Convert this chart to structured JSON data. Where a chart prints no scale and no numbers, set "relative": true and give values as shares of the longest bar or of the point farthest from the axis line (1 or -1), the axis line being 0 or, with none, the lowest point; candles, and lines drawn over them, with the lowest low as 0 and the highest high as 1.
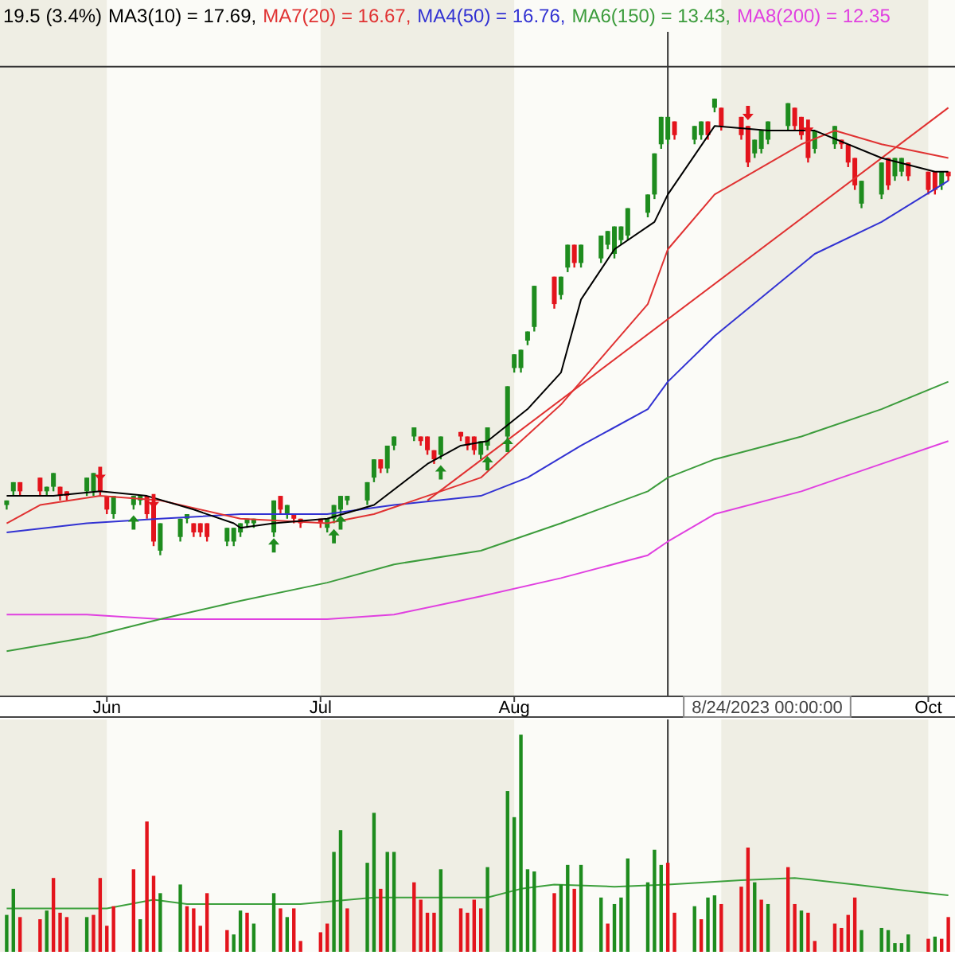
{
  "chart_data": [
    {
      "type": "candlestick",
      "relative": true,
      "title": "19.5 (3.4%)",
      "legend": "top left",
      "xlim": [
        "2023-05-16",
        "2023-10-06"
      ],
      "xticks": [
        {
          "value": "2023-06-01",
          "label": "Jun"
        },
        {
          "value": "2023-07-03",
          "label": "Jul"
        },
        {
          "value": "2023-08-01",
          "label": "Aug"
        },
        {
          "value": "2023-09-01",
          "label": null
        },
        {
          "value": "2023-10-02",
          "label": "Oct"
        }
      ],
      "x": [
        "2023-05-17",
        "2023-05-18",
        "2023-05-19",
        "2023-05-22",
        "2023-05-23",
        "2023-05-24",
        "2023-05-25",
        "2023-05-26",
        "2023-05-29",
        "2023-05-30",
        "2023-05-31",
        "2023-06-01",
        "2023-06-02",
        "2023-06-05",
        "2023-06-06",
        "2023-06-07",
        "2023-06-08",
        "2023-06-09",
        "2023-06-12",
        "2023-06-13",
        "2023-06-14",
        "2023-06-15",
        "2023-06-16",
        "2023-06-19",
        "2023-06-20",
        "2023-06-21",
        "2023-06-22",
        "2023-06-23",
        "2023-06-26",
        "2023-06-27",
        "2023-06-28",
        "2023-06-29",
        "2023-06-30",
        "2023-07-03",
        "2023-07-04",
        "2023-07-05",
        "2023-07-06",
        "2023-07-07",
        "2023-07-10",
        "2023-07-11",
        "2023-07-12",
        "2023-07-13",
        "2023-07-14",
        "2023-07-17",
        "2023-07-18",
        "2023-07-19",
        "2023-07-20",
        "2023-07-21",
        "2023-07-24",
        "2023-07-25",
        "2023-07-26",
        "2023-07-27",
        "2023-07-28",
        "2023-07-31",
        "2023-08-01",
        "2023-08-02",
        "2023-08-03",
        "2023-08-04",
        "2023-08-07",
        "2023-08-08",
        "2023-08-09",
        "2023-08-10",
        "2023-08-11",
        "2023-08-14",
        "2023-08-15",
        "2023-08-16",
        "2023-08-17",
        "2023-08-18",
        "2023-08-21",
        "2023-08-22",
        "2023-08-23",
        "2023-08-24",
        "2023-08-25",
        "2023-08-28",
        "2023-08-29",
        "2023-08-30",
        "2023-08-31",
        "2023-09-01",
        "2023-09-04",
        "2023-09-05",
        "2023-09-06",
        "2023-09-07",
        "2023-09-08",
        "2023-09-11",
        "2023-09-12",
        "2023-09-13",
        "2023-09-14",
        "2023-09-15",
        "2023-09-18",
        "2023-09-19",
        "2023-09-20",
        "2023-09-21",
        "2023-09-22",
        "2023-09-25",
        "2023-09-26",
        "2023-09-27",
        "2023-09-28",
        "2023-09-29",
        "2023-10-02",
        "2023-10-03",
        "2023-10-04",
        "2023-10-05"
      ],
      "ohlc": [
        [
          0.11,
          0.12,
          0.1,
          0.12
        ],
        [
          0.14,
          0.16,
          0.13,
          0.16
        ],
        [
          0.16,
          0.16,
          0.13,
          0.14
        ],
        [
          0.17,
          0.17,
          0.13,
          0.14
        ],
        [
          0.14,
          0.15,
          0.13,
          0.15
        ],
        [
          0.15,
          0.18,
          0.14,
          0.18
        ],
        [
          0.15,
          0.15,
          0.12,
          0.13
        ],
        [
          0.14,
          0.14,
          0.12,
          0.13
        ],
        [
          0.14,
          0.17,
          0.13,
          0.17
        ],
        [
          0.14,
          0.18,
          0.13,
          0.18
        ],
        [
          0.17,
          0.17,
          0.13,
          0.14
        ],
        [
          0.13,
          0.13,
          0.09,
          0.1
        ],
        [
          0.09,
          0.13,
          0.08,
          0.13
        ],
        [
          0.11,
          0.13,
          0.1,
          0.13
        ],
        [
          0.12,
          0.13,
          0.11,
          0.13
        ],
        [
          0.13,
          0.13,
          0.08,
          0.09
        ],
        [
          0.11,
          0.11,
          0.02,
          0.03
        ],
        [
          0.01,
          0.07,
          0,
          0.07
        ],
        [
          0.04,
          0.08,
          0.03,
          0.08
        ],
        [
          0.08,
          0.09,
          0.07,
          0.09
        ],
        [
          0.07,
          0.07,
          0.04,
          0.05
        ],
        [
          0.07,
          0.07,
          0.04,
          0.05
        ],
        [
          0.07,
          0.07,
          0.03,
          0.04
        ],
        [
          0.03,
          0.06,
          0.02,
          0.06
        ],
        [
          0.03,
          0.06,
          0.02,
          0.06
        ],
        [
          0.05,
          0.07,
          0.04,
          0.07
        ],
        [
          0.07,
          0.08,
          0.06,
          0.08
        ],
        [
          0.07,
          0.08,
          0.06,
          0.08
        ],
        [
          0.05,
          0.12,
          0.04,
          0.12
        ],
        [
          0.13,
          0.13,
          0.09,
          0.1
        ],
        [
          0.09,
          0.11,
          0.08,
          0.11
        ],
        [
          0.09,
          0.09,
          0.07,
          0.08
        ],
        [
          0.08,
          0.08,
          0.06,
          0.07
        ],
        [
          0.08,
          0.08,
          0.06,
          0.07
        ],
        [
          0.06,
          0.08,
          0.05,
          0.08
        ],
        [
          0.08,
          0.11,
          0.07,
          0.11
        ],
        [
          0.1,
          0.13,
          0.09,
          0.13
        ],
        [
          0.12,
          0.13,
          0.11,
          0.13
        ],
        [
          0.12,
          0.16,
          0.11,
          0.16
        ],
        [
          0.17,
          0.21,
          0.16,
          0.21
        ],
        [
          0.21,
          0.21,
          0.18,
          0.19
        ],
        [
          0.19,
          0.24,
          0.18,
          0.24
        ],
        [
          0.24,
          0.26,
          0.23,
          0.26
        ],
        [
          0.26,
          0.28,
          0.25,
          0.28
        ],
        [
          0.26,
          0.26,
          0.24,
          0.25
        ],
        [
          0.26,
          0.26,
          0.22,
          0.23
        ],
        [
          0.23,
          0.23,
          0.2,
          0.21
        ],
        [
          0.22,
          0.26,
          0.21,
          0.26
        ],
        [
          0.27,
          0.27,
          0.25,
          0.26
        ],
        [
          0.26,
          0.26,
          0.23,
          0.24
        ],
        [
          0.26,
          0.26,
          0.22,
          0.23
        ],
        [
          0.22,
          0.25,
          0.21,
          0.25
        ],
        [
          0.24,
          0.28,
          0.23,
          0.28
        ],
        [
          0.26,
          0.37,
          0.25,
          0.37
        ],
        [
          0.41,
          0.44,
          0.4,
          0.44
        ],
        [
          0.41,
          0.45,
          0.4,
          0.45
        ],
        [
          0.47,
          0.49,
          0.46,
          0.49
        ],
        [
          0.5,
          0.59,
          0.49,
          0.59
        ],
        [
          0.61,
          0.61,
          0.54,
          0.55
        ],
        [
          0.57,
          0.61,
          0.56,
          0.61
        ],
        [
          0.63,
          0.68,
          0.62,
          0.68
        ],
        [
          0.68,
          0.68,
          0.63,
          0.64
        ],
        [
          0.64,
          0.68,
          0.63,
          0.68
        ],
        [
          0.65,
          0.7,
          0.64,
          0.7
        ],
        [
          0.68,
          0.71,
          0.67,
          0.71
        ],
        [
          0.66,
          0.72,
          0.65,
          0.72
        ],
        [
          0.69,
          0.72,
          0.68,
          0.72
        ],
        [
          0.7,
          0.76,
          0.69,
          0.76
        ],
        [
          0.75,
          0.79,
          0.74,
          0.79
        ],
        [
          0.79,
          0.88,
          0.78,
          0.88
        ],
        [
          0.9,
          0.96,
          0.89,
          0.96
        ],
        [
          0.91,
          0.96,
          0.9,
          0.96
        ],
        [
          0.95,
          0.95,
          0.91,
          0.92
        ],
        [
          0.91,
          0.94,
          0.9,
          0.94
        ],
        [
          0.92,
          0.95,
          0.91,
          0.95
        ],
        [
          0.95,
          0.95,
          0.91,
          0.92
        ],
        [
          0.98,
          1,
          0.97,
          1
        ],
        [
          0.98,
          0.98,
          0.93,
          0.94
        ],
        [
          0.96,
          0.96,
          0.91,
          0.92
        ],
        [
          0.94,
          0.94,
          0.85,
          0.86
        ],
        [
          0.88,
          0.91,
          0.87,
          0.91
        ],
        [
          0.89,
          0.93,
          0.88,
          0.93
        ],
        [
          0.91,
          0.95,
          0.9,
          0.95
        ],
        [
          0.94,
          0.99,
          0.93,
          0.99
        ],
        [
          0.98,
          0.98,
          0.93,
          0.94
        ],
        [
          0.96,
          0.96,
          0.91,
          0.92
        ],
        [
          0.93,
          0.93,
          0.86,
          0.87
        ],
        [
          0.89,
          0.93,
          0.88,
          0.93
        ],
        [
          0.9,
          0.94,
          0.89,
          0.94
        ],
        [
          0.91,
          0.91,
          0.89,
          0.9
        ],
        [
          0.9,
          0.9,
          0.85,
          0.86
        ],
        [
          0.87,
          0.87,
          0.8,
          0.81
        ],
        [
          0.77,
          0.82,
          0.76,
          0.82
        ],
        [
          0.79,
          0.86,
          0.78,
          0.86
        ],
        [
          0.87,
          0.87,
          0.8,
          0.81
        ],
        [
          0.83,
          0.87,
          0.82,
          0.87
        ],
        [
          0.84,
          0.87,
          0.83,
          0.87
        ],
        [
          0.86,
          0.86,
          0.82,
          0.83
        ],
        [
          0.84,
          0.84,
          0.79,
          0.8
        ],
        [
          0.84,
          0.84,
          0.79,
          0.8
        ],
        [
          0.81,
          0.84,
          0.8,
          0.84
        ],
        [
          0.84,
          0.84,
          0.82,
          0.83
        ]
      ],
      "colors": [
        "#1e8c1e",
        "#1e8c1e",
        "#e3141c",
        "#e3141c",
        "#1e8c1e",
        "#1e8c1e",
        "#e3141c",
        "#e3141c",
        "#1e8c1e",
        "#1e8c1e",
        "#e3141c",
        "#e3141c",
        "#1e8c1e",
        "#1e8c1e",
        "#1e8c1e",
        "#e3141c",
        "#e3141c",
        "#1e8c1e",
        "#1e8c1e",
        "#1e8c1e",
        "#e3141c",
        "#e3141c",
        "#e3141c",
        "#1e8c1e",
        "#1e8c1e",
        "#1e8c1e",
        "#1e8c1e",
        "#1e8c1e",
        "#1e8c1e",
        "#e3141c",
        "#1e8c1e",
        "#e3141c",
        "#e3141c",
        "#e3141c",
        "#1e8c1e",
        "#1e8c1e",
        "#1e8c1e",
        "#1e8c1e",
        "#1e8c1e",
        "#1e8c1e",
        "#e3141c",
        "#1e8c1e",
        "#1e8c1e",
        "#1e8c1e",
        "#e3141c",
        "#e3141c",
        "#e3141c",
        "#1e8c1e",
        "#e3141c",
        "#e3141c",
        "#e3141c",
        "#1e8c1e",
        "#1e8c1e",
        "#1e8c1e",
        "#1e8c1e",
        "#1e8c1e",
        "#1e8c1e",
        "#1e8c1e",
        "#e3141c",
        "#1e8c1e",
        "#1e8c1e",
        "#e3141c",
        "#1e8c1e",
        "#1e8c1e",
        "#1e8c1e",
        "#1e8c1e",
        "#1e8c1e",
        "#1e8c1e",
        "#1e8c1e",
        "#1e8c1e",
        "#1e8c1e",
        "#1e8c1e",
        "#e3141c",
        "#1e8c1e",
        "#1e8c1e",
        "#e3141c",
        "#1e8c1e",
        "#e3141c",
        "#e3141c",
        "#e3141c",
        "#1e8c1e",
        "#1e8c1e",
        "#1e8c1e",
        "#1e8c1e",
        "#e3141c",
        "#e3141c",
        "#e3141c",
        "#1e8c1e",
        "#1e8c1e",
        "#e3141c",
        "#e3141c",
        "#e3141c",
        "#1e8c1e",
        "#1e8c1e",
        "#e3141c",
        "#1e8c1e",
        "#1e8c1e",
        "#e3141c",
        "#e3141c",
        "#e3141c",
        "#1e8c1e",
        "#e3141c"
      ],
      "series": [
        {
          "type": "line",
          "name": "MA3(10) = 17.69,",
          "color": "#000000",
          "x": [
            "2023-05-17",
            "2023-05-24",
            "2023-05-31",
            "2023-06-07",
            "2023-06-14",
            "2023-06-20",
            "2023-06-21",
            "2023-06-26",
            "2023-07-04",
            "2023-07-11",
            "2023-07-19",
            "2023-07-24",
            "2023-07-28",
            "2023-08-03",
            "2023-08-08",
            "2023-08-11",
            "2023-08-16",
            "2023-08-22",
            "2023-08-24",
            "2023-08-31",
            "2023-09-08",
            "2023-09-15",
            "2023-09-25",
            "2023-10-03",
            "2023-10-05"
          ],
          "values": [
            0.13,
            0.13,
            0.14,
            0.13,
            0.1,
            0.07,
            0.06,
            0.07,
            0.08,
            0.11,
            0.2,
            0.24,
            0.25,
            0.32,
            0.4,
            0.56,
            0.67,
            0.73,
            0.79,
            0.94,
            0.93,
            0.93,
            0.87,
            0.84,
            0.84
          ]
        },
        {
          "type": "line",
          "name": "MA7(20) = 16.67,",
          "color": "#e03232",
          "x": [
            "2023-05-17",
            "2023-05-22",
            "2023-05-31",
            "2023-06-09",
            "2023-06-21",
            "2023-07-04",
            "2023-07-11",
            "2023-07-19",
            "2023-07-27",
            "2023-08-08",
            "2023-08-21",
            "2023-08-24",
            "2023-08-31",
            "2023-09-13",
            "2023-09-18",
            "2023-09-25",
            "2023-10-05"
          ],
          "values": [
            0.07,
            0.11,
            0.13,
            0.12,
            0.08,
            0.07,
            0.09,
            0.13,
            0.17,
            0.33,
            0.55,
            0.67,
            0.79,
            0.9,
            0.93,
            0.9,
            0.87
          ]
        },
        {
          "type": "line",
          "name": "MA4(50) = 16.76,",
          "color": "#3232d2",
          "x": [
            "2023-05-17",
            "2023-05-29",
            "2023-06-09",
            "2023-06-21",
            "2023-07-04",
            "2023-07-14",
            "2023-07-27",
            "2023-08-03",
            "2023-08-11",
            "2023-08-21",
            "2023-08-24",
            "2023-08-31",
            "2023-09-15",
            "2023-09-25",
            "2023-10-05"
          ],
          "values": [
            0.05,
            0.07,
            0.08,
            0.09,
            0.09,
            0.11,
            0.13,
            0.17,
            0.24,
            0.32,
            0.38,
            0.48,
            0.66,
            0.73,
            0.82
          ]
        },
        {
          "type": "line",
          "name": "MA6(150) = 13.43,",
          "color": "#3c9c3c",
          "x": [
            "2023-05-17",
            "2023-05-29",
            "2023-06-09",
            "2023-06-21",
            "2023-07-04",
            "2023-07-14",
            "2023-07-27",
            "2023-08-08",
            "2023-08-21",
            "2023-08-24",
            "2023-08-31",
            "2023-09-13",
            "2023-09-25",
            "2023-10-05"
          ],
          "values": [
            -0.21,
            -0.18,
            -0.14,
            -0.1,
            -0.06,
            -0.02,
            0.01,
            0.07,
            0.14,
            0.17,
            0.21,
            0.26,
            0.32,
            0.38
          ]
        },
        {
          "type": "line",
          "name": "MA8(200) = 12.35",
          "color": "#e040e0",
          "x": [
            "2023-05-17",
            "2023-05-29",
            "2023-06-09",
            "2023-06-21",
            "2023-07-04",
            "2023-07-14",
            "2023-07-27",
            "2023-08-08",
            "2023-08-21",
            "2023-08-24",
            "2023-08-31",
            "2023-09-13",
            "2023-09-25",
            "2023-10-05"
          ],
          "values": [
            -0.13,
            -0.13,
            -0.14,
            -0.14,
            -0.14,
            -0.13,
            -0.09,
            -0.05,
            0.0,
            0.03,
            0.09,
            0.14,
            0.2,
            0.25
          ]
        },
        {
          "type": "line",
          "color": "#e03030",
          "x": [
            "2023-07-19",
            "2023-10-05"
          ],
          "values": [
            0.12,
            0.98
          ]
        },
        {
          "type": "scatter",
          "marker": "triangle",
          "color": "#1e8c1e",
          "x": [
            "2023-06-05",
            "2023-06-26",
            "2023-07-05",
            "2023-07-06",
            "2023-07-21",
            "2023-07-28",
            "2023-07-31"
          ],
          "values": [
            0.07,
            0.02,
            0.04,
            0.07,
            0.18,
            0.2,
            0.24
          ]
        },
        {
          "type": "scatter",
          "marker": "triangle",
          "color": "#e3141c",
          "x": [
            "2023-05-31",
            "2023-06-08",
            "2023-09-05",
            "2023-09-14"
          ],
          "values": [
            0.18,
            0.12,
            0.97,
            0.94
          ]
        }
      ],
      "bands": [
        {
          "axis": "x",
          "from": "2023-05-16",
          "to": "2023-06-01",
          "color": "#efeee4"
        },
        {
          "axis": "x",
          "from": "2023-07-03",
          "to": "2023-08-01",
          "color": "#efeee4"
        },
        {
          "axis": "x",
          "from": "2023-09-01",
          "to": "2023-10-02",
          "color": "#efeee4"
        }
      ],
      "ref_lines": [
        {
          "axis": "x",
          "value": "2023-08-24"
        },
        {
          "axis": "y",
          "value": 1.07
        }
      ],
      "annotations": [
        "8/24/2023 00:00:00"
      ]
    },
    {
      "type": "bar",
      "relative": true,
      "xlim": [
        "2023-05-16",
        "2023-10-06"
      ],
      "x": [
        "2023-05-17",
        "2023-05-18",
        "2023-05-19",
        "2023-05-22",
        "2023-05-23",
        "2023-05-24",
        "2023-05-25",
        "2023-05-26",
        "2023-05-29",
        "2023-05-30",
        "2023-05-31",
        "2023-06-01",
        "2023-06-02",
        "2023-06-05",
        "2023-06-06",
        "2023-06-07",
        "2023-06-08",
        "2023-06-09",
        "2023-06-12",
        "2023-06-13",
        "2023-06-14",
        "2023-06-15",
        "2023-06-16",
        "2023-06-19",
        "2023-06-20",
        "2023-06-21",
        "2023-06-22",
        "2023-06-23",
        "2023-06-26",
        "2023-06-27",
        "2023-06-28",
        "2023-06-29",
        "2023-06-30",
        "2023-07-03",
        "2023-07-04",
        "2023-07-05",
        "2023-07-06",
        "2023-07-07",
        "2023-07-10",
        "2023-07-11",
        "2023-07-12",
        "2023-07-13",
        "2023-07-14",
        "2023-07-17",
        "2023-07-18",
        "2023-07-19",
        "2023-07-20",
        "2023-07-21",
        "2023-07-24",
        "2023-07-25",
        "2023-07-26",
        "2023-07-27",
        "2023-07-28",
        "2023-07-31",
        "2023-08-01",
        "2023-08-02",
        "2023-08-03",
        "2023-08-04",
        "2023-08-07",
        "2023-08-08",
        "2023-08-09",
        "2023-08-10",
        "2023-08-11",
        "2023-08-14",
        "2023-08-15",
        "2023-08-16",
        "2023-08-17",
        "2023-08-18",
        "2023-08-21",
        "2023-08-22",
        "2023-08-23",
        "2023-08-24",
        "2023-08-25",
        "2023-08-28",
        "2023-08-29",
        "2023-08-30",
        "2023-08-31",
        "2023-09-01",
        "2023-09-04",
        "2023-09-05",
        "2023-09-06",
        "2023-09-07",
        "2023-09-08",
        "2023-09-11",
        "2023-09-12",
        "2023-09-13",
        "2023-09-14",
        "2023-09-15",
        "2023-09-18",
        "2023-09-19",
        "2023-09-20",
        "2023-09-21",
        "2023-09-22",
        "2023-09-25",
        "2023-09-26",
        "2023-09-27",
        "2023-09-28",
        "2023-09-29",
        "2023-10-02",
        "2023-10-03",
        "2023-10-04",
        "2023-10-05"
      ],
      "series": [
        {
          "type": "bar",
          "values": [
            0.17,
            0.29,
            0.16,
            0.15,
            0.19,
            0.34,
            0.18,
            0.16,
            0.16,
            0.17,
            0.34,
            0.12,
            0.21,
            0.38,
            0.15,
            0.6,
            0.35,
            0.27,
            0.31,
            0.21,
            0.2,
            0.12,
            0.27,
            0.1,
            0.08,
            0.19,
            0.18,
            0.13,
            0.27,
            0.2,
            0.16,
            0.2,
            0.05,
            0.09,
            0.13,
            0.46,
            0.56,
            0.2,
            0.41,
            0.64,
            0.29,
            0.46,
            0.46,
            0.32,
            0.24,
            0.18,
            0.18,
            0.38,
            0.2,
            0.18,
            0.24,
            0.2,
            0.39,
            0.74,
            0.62,
            1,
            0.38,
            0.37,
            0.27,
            0.31,
            0.4,
            0.29,
            0.4,
            0.25,
            0.13,
            0.22,
            0.25,
            0.43,
            0.32,
            0.47,
            0.4,
            0.41,
            0.18,
            0.21,
            0.15,
            0.25,
            0.26,
            0.22,
            0.3,
            0.48,
            0.32,
            0.24,
            0.22,
            0.39,
            0.22,
            0.19,
            0.18,
            0.05,
            0.13,
            0.11,
            0.17,
            0.25,
            0.1,
            0.11,
            0.1,
            0.04,
            0.04,
            0.08,
            0.06,
            0.07,
            0.06,
            0.16
          ],
          "colors": [
            "#1e8c1e",
            "#1e8c1e",
            "#e3141c",
            "#e3141c",
            "#1e8c1e",
            "#e3141c",
            "#e3141c",
            "#e3141c",
            "#1e8c1e",
            "#e3141c",
            "#e3141c",
            "#e3141c",
            "#e3141c",
            "#e3141c",
            "#1e8c1e",
            "#e3141c",
            "#e3141c",
            "#1e8c1e",
            "#1e8c1e",
            "#e3141c",
            "#e3141c",
            "#e3141c",
            "#e3141c",
            "#e3141c",
            "#1e8c1e",
            "#1e8c1e",
            "#e3141c",
            "#1e8c1e",
            "#1e8c1e",
            "#e3141c",
            "#1e8c1e",
            "#e3141c",
            "#e3141c",
            "#e3141c",
            "#e3141c",
            "#1e8c1e",
            "#1e8c1e",
            "#e3141c",
            "#1e8c1e",
            "#1e8c1e",
            "#e3141c",
            "#1e8c1e",
            "#1e8c1e",
            "#e3141c",
            "#e3141c",
            "#e3141c",
            "#e3141c",
            "#1e8c1e",
            "#e3141c",
            "#e3141c",
            "#e3141c",
            "#e3141c",
            "#1e8c1e",
            "#1e8c1e",
            "#1e8c1e",
            "#1e8c1e",
            "#1e8c1e",
            "#1e8c1e",
            "#e3141c",
            "#1e8c1e",
            "#1e8c1e",
            "#e3141c",
            "#1e8c1e",
            "#1e8c1e",
            "#e3141c",
            "#1e8c1e",
            "#1e8c1e",
            "#1e8c1e",
            "#1e8c1e",
            "#1e8c1e",
            "#1e8c1e",
            "#e3141c",
            "#e3141c",
            "#1e8c1e",
            "#e3141c",
            "#1e8c1e",
            "#1e8c1e",
            "#e3141c",
            "#e3141c",
            "#e3141c",
            "#1e8c1e",
            "#e3141c",
            "#1e8c1e",
            "#e3141c",
            "#e3141c",
            "#1e8c1e",
            "#e3141c",
            "#e3141c",
            "#e3141c",
            "#e3141c",
            "#e3141c",
            "#e3141c",
            "#1e8c1e",
            "#1e8c1e",
            "#1e8c1e",
            "#1e8c1e",
            "#1e8c1e",
            "#1e8c1e",
            "#e3141c",
            "#1e8c1e",
            "#e3141c",
            "#e3141c"
          ]
        },
        {
          "type": "line",
          "color": "#3ca03c",
          "x": [
            "2023-05-17",
            "2023-06-01",
            "2023-06-08",
            "2023-06-13",
            "2023-06-30",
            "2023-07-11",
            "2023-07-28",
            "2023-08-02",
            "2023-08-07",
            "2023-08-16",
            "2023-08-24",
            "2023-09-04",
            "2023-09-12",
            "2023-09-21",
            "2023-09-29",
            "2023-10-05"
          ],
          "values": [
            0.2,
            0.2,
            0.24,
            0.22,
            0.22,
            0.25,
            0.25,
            0.29,
            0.31,
            0.3,
            0.31,
            0.33,
            0.34,
            0.31,
            0.28,
            0.26
          ]
        }
      ],
      "bands": [
        {
          "axis": "x",
          "from": "2023-05-16",
          "to": "2023-06-01",
          "color": "#efeee4"
        },
        {
          "axis": "x",
          "from": "2023-07-03",
          "to": "2023-08-01",
          "color": "#efeee4"
        },
        {
          "axis": "x",
          "from": "2023-09-01",
          "to": "2023-10-02",
          "color": "#efeee4"
        }
      ],
      "ref_lines": [
        {
          "axis": "x",
          "value": "2023-08-24"
        }
      ]
    }
  ]
}
